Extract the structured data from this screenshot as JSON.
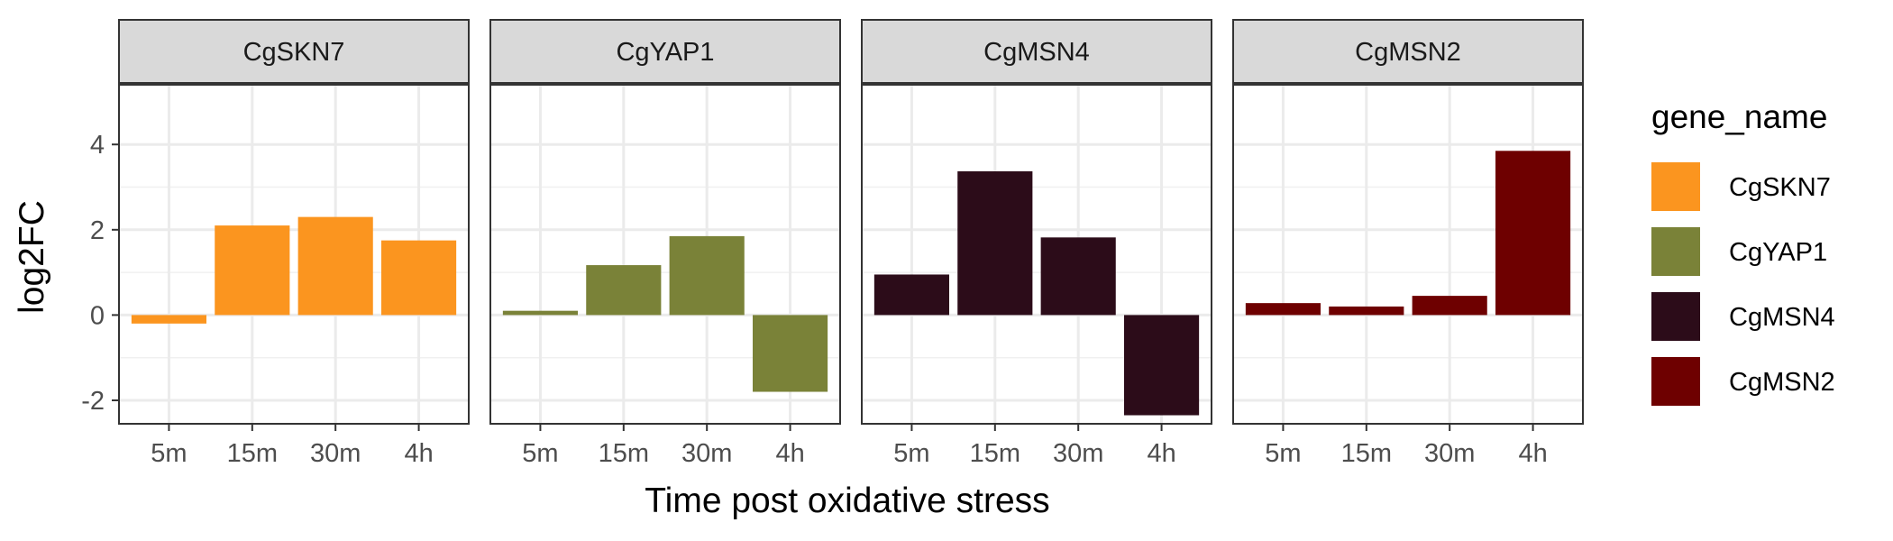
{
  "chart_data": {
    "type": "bar",
    "categories": [
      "5m",
      "15m",
      "30m",
      "4h"
    ],
    "xlabel": "Time post oxidative stress",
    "ylabel": "log2FC",
    "ylim": [
      -2.55,
      5.4
    ],
    "yticks": [
      "-2",
      "0",
      "2",
      "4"
    ],
    "grid": true,
    "legend": {
      "title": "gene_name",
      "position": "right",
      "entries": [
        "CgSKN7",
        "CgYAP1",
        "CgMSN4",
        "CgMSN2"
      ]
    },
    "series": [
      {
        "name": "CgSKN7",
        "color": "#fb951f",
        "values": [
          -0.2,
          2.1,
          2.3,
          1.75
        ]
      },
      {
        "name": "CgYAP1",
        "color": "#7a8238",
        "values": [
          0.1,
          1.17,
          1.85,
          -1.8
        ]
      },
      {
        "name": "CgMSN4",
        "color": "#2c0c19",
        "values": [
          0.95,
          3.37,
          1.82,
          -2.35
        ]
      },
      {
        "name": "CgMSN2",
        "color": "#6e0000",
        "values": [
          0.28,
          0.2,
          0.45,
          3.85
        ]
      }
    ]
  }
}
